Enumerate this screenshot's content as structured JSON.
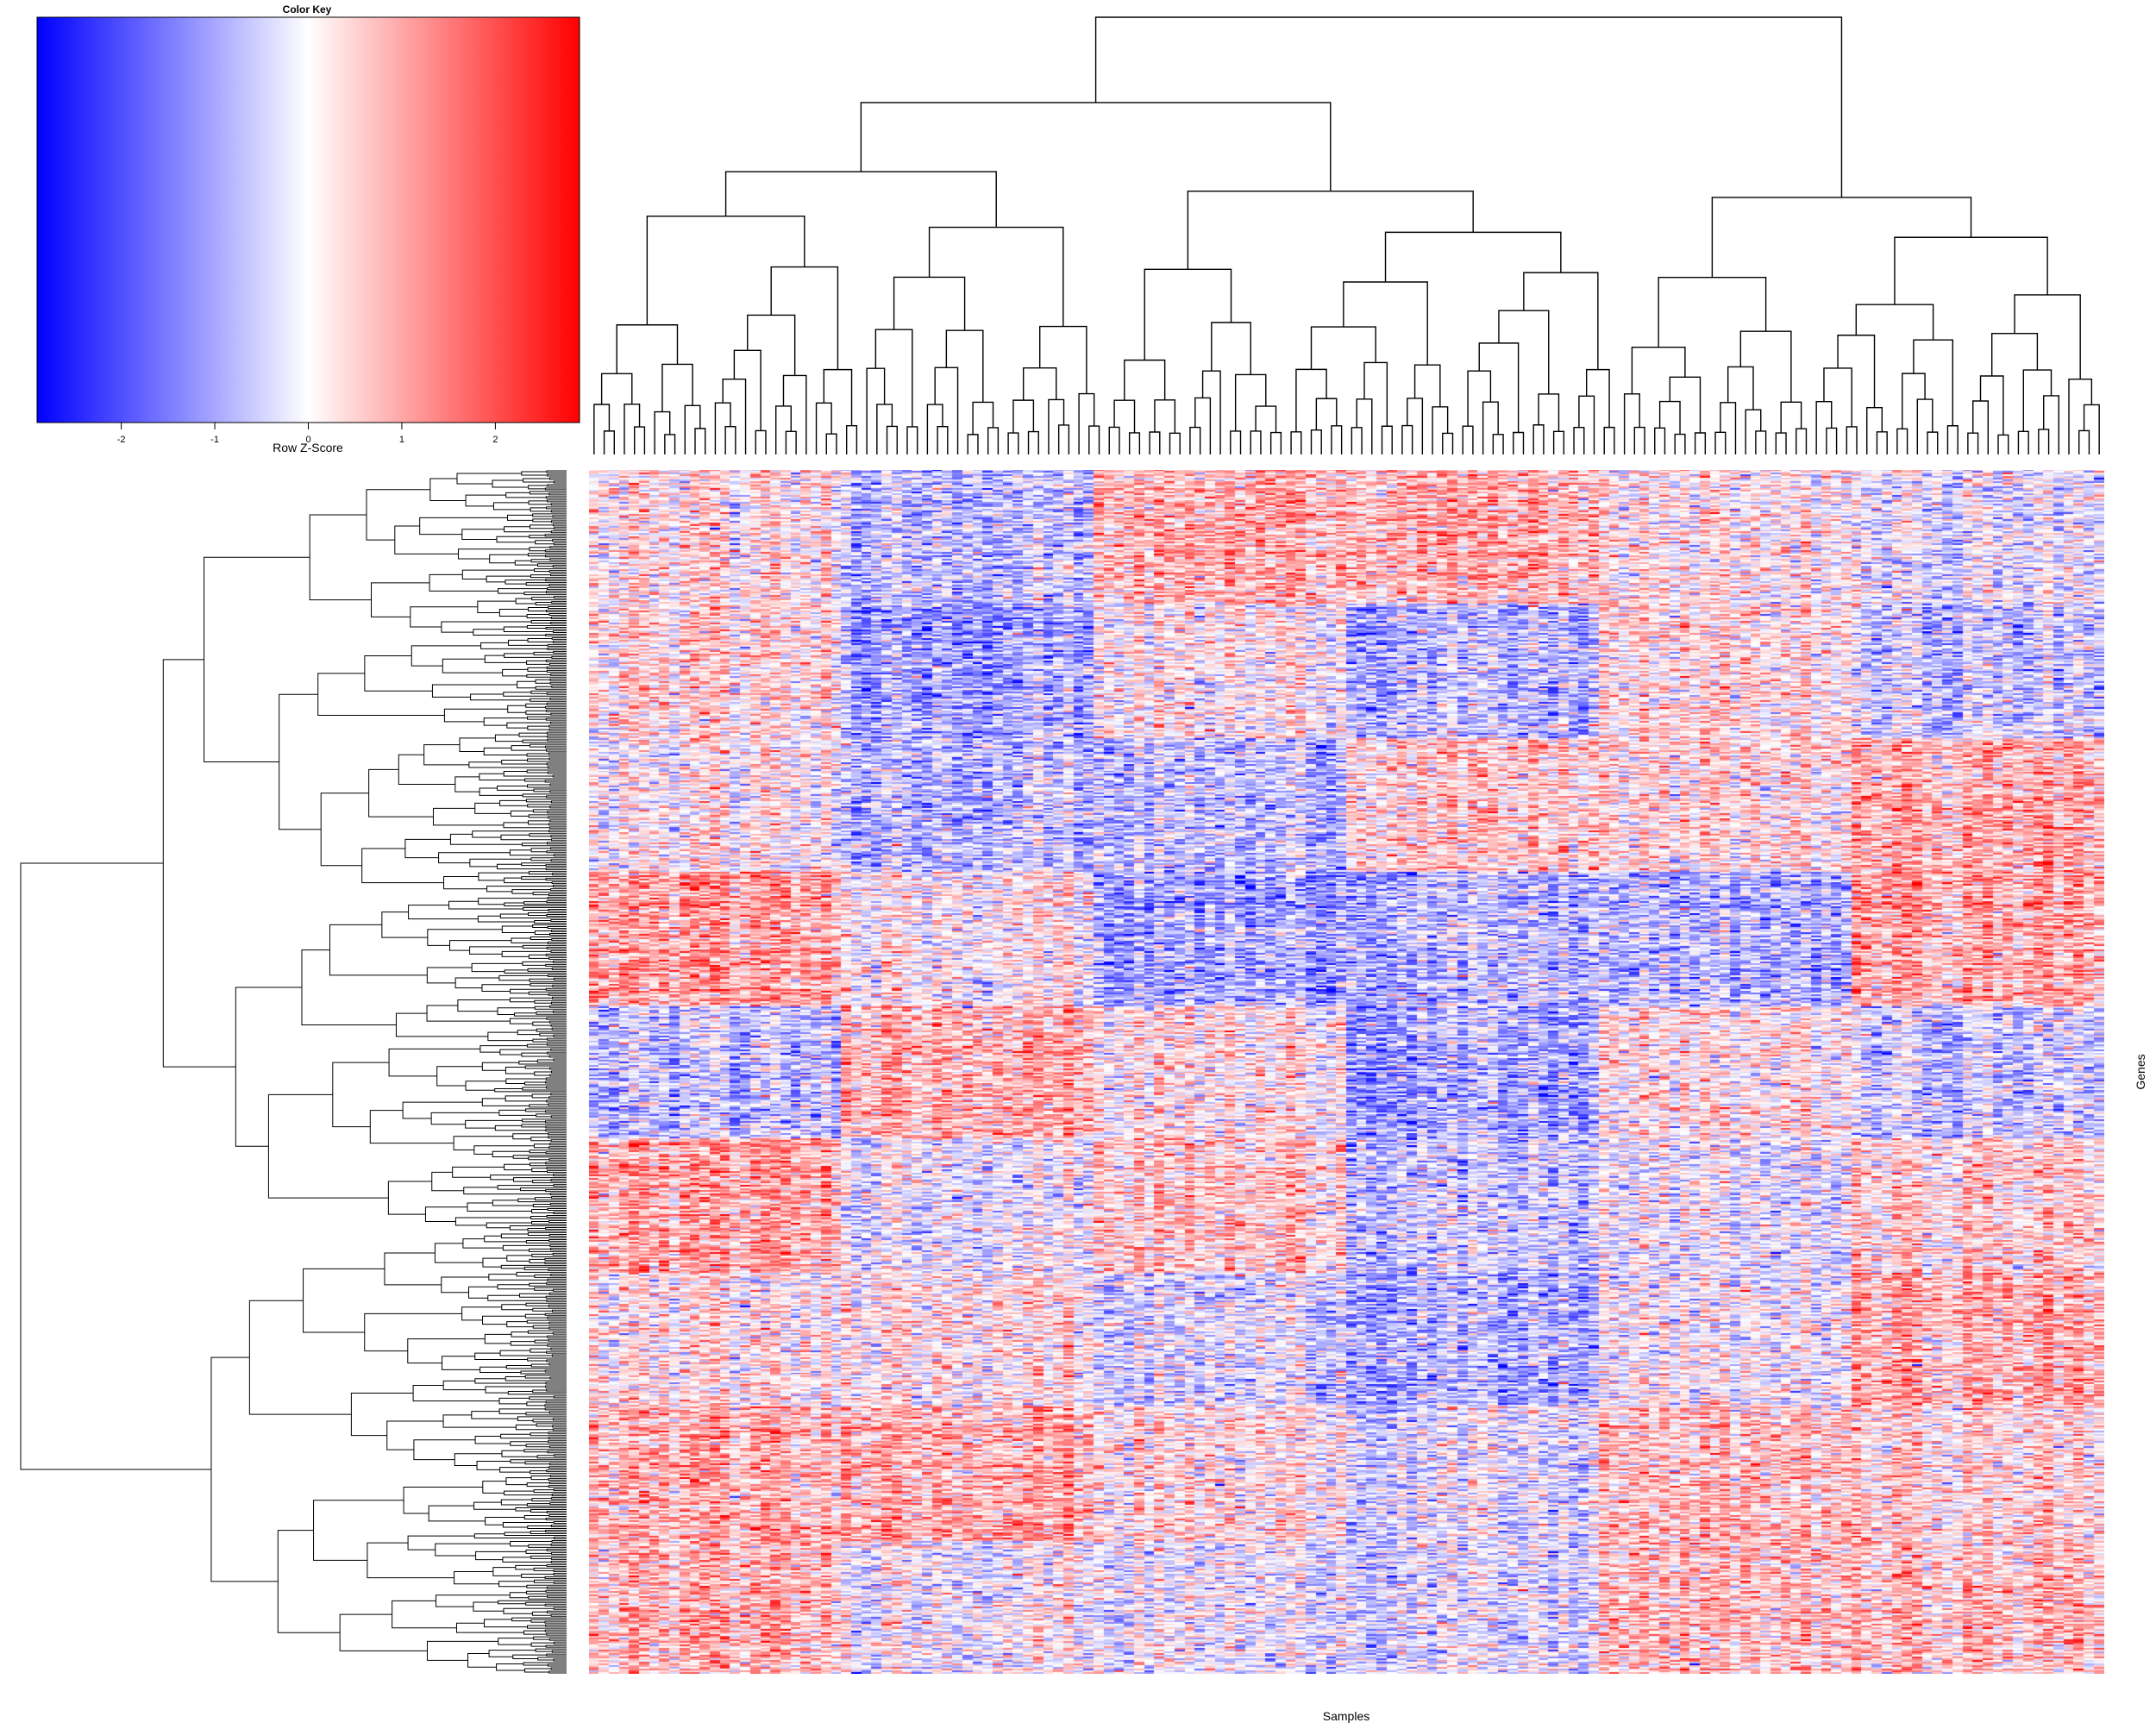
{
  "chart_data": {
    "type": "heatmap",
    "color_key": {
      "title": "Color Key",
      "xlabel": "Row Z-Score",
      "range": [
        -2.9,
        2.9
      ],
      "ticks": [
        -2,
        -1,
        0,
        1,
        2
      ],
      "colors": {
        "low": "#0000ff",
        "mid": "#ffffff",
        "high": "#ff0000"
      }
    },
    "xlabel": "Samples",
    "ylabel": "Genes",
    "n_samples": 150,
    "n_genes_approx": 700,
    "column_dendrogram": true,
    "row_dendrogram": true,
    "row_z_score_scaled": true
  }
}
